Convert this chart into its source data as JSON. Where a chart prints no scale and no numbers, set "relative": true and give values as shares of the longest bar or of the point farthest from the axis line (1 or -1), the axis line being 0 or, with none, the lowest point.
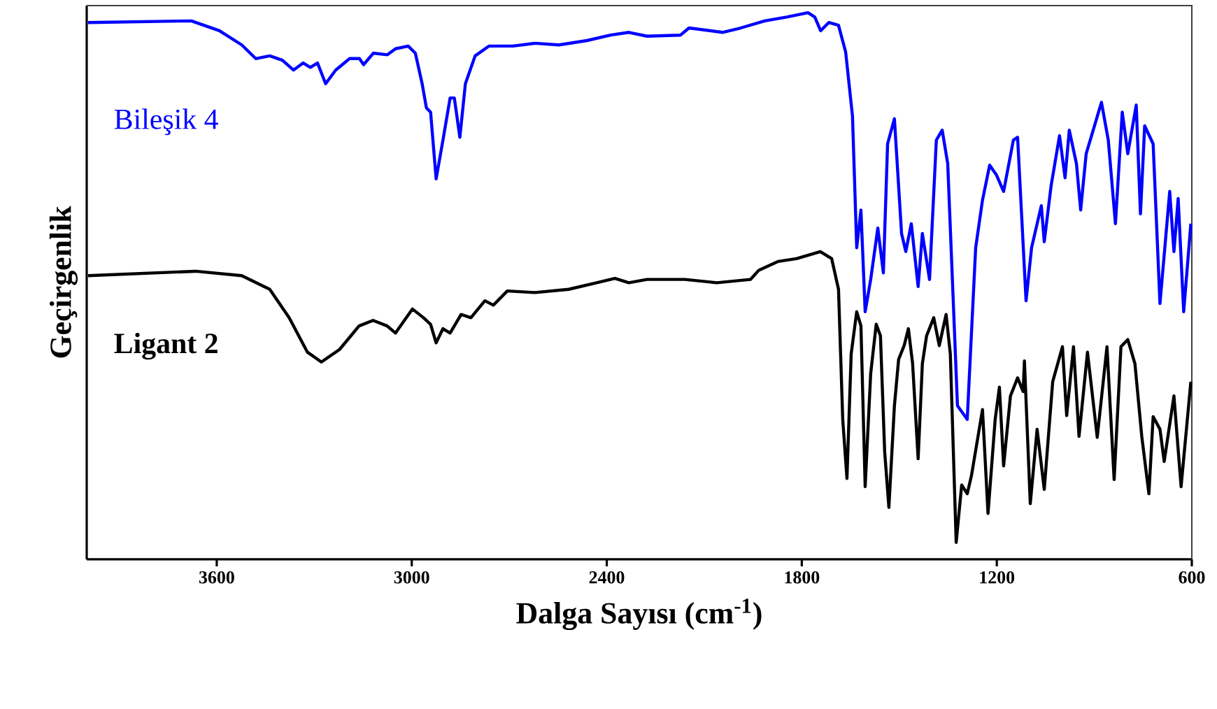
{
  "chart_data": {
    "type": "line",
    "xlabel": "Dalga Sayısı (cm$^{-1}$)",
    "ylabel": "Geçirgenlik",
    "relative": true,
    "xlim": [
      4000,
      600
    ],
    "xticks": [
      3600,
      3000,
      2400,
      1800,
      1200,
      600
    ],
    "series": [
      {
        "name": "Bileşik 4",
        "color": "#0000ff",
        "x": [
          3996,
          3678,
          3592,
          3523,
          3480,
          3437,
          3398,
          3364,
          3334,
          3312,
          3290,
          3265,
          3234,
          3191,
          3161,
          3148,
          3118,
          3075,
          3050,
          3011,
          2989,
          2968,
          2955,
          2942,
          2925,
          2904,
          2882,
          2869,
          2852,
          2835,
          2805,
          2762,
          2689,
          2620,
          2547,
          2461,
          2388,
          2332,
          2276,
          2173,
          2147,
          2044,
          1988,
          1914,
          1846,
          1781,
          1760,
          1742,
          1717,
          1687,
          1665,
          1644,
          1631,
          1618,
          1605,
          1588,
          1566,
          1549,
          1536,
          1515,
          1493,
          1480,
          1463,
          1442,
          1429,
          1407,
          1386,
          1368,
          1351,
          1321,
          1291,
          1265,
          1244,
          1222,
          1201,
          1179,
          1149,
          1136,
          1110,
          1093,
          1063,
          1054,
          1033,
          1007,
          990,
          977,
          955,
          942,
          925,
          878,
          857,
          835,
          814,
          797,
          771,
          758,
          745,
          719,
          698,
          668,
          655,
          642,
          625,
          603
        ],
        "values": [
          0.982,
          0.985,
          0.967,
          0.941,
          0.916,
          0.921,
          0.913,
          0.895,
          0.908,
          0.9,
          0.908,
          0.87,
          0.895,
          0.916,
          0.916,
          0.905,
          0.926,
          0.923,
          0.934,
          0.939,
          0.926,
          0.87,
          0.826,
          0.818,
          0.696,
          0.767,
          0.844,
          0.844,
          0.772,
          0.87,
          0.921,
          0.939,
          0.939,
          0.944,
          0.941,
          0.949,
          0.959,
          0.964,
          0.957,
          0.959,
          0.972,
          0.964,
          0.972,
          0.985,
          0.992,
          1.0,
          0.992,
          0.967,
          0.982,
          0.977,
          0.928,
          0.811,
          0.57,
          0.639,
          0.453,
          0.512,
          0.606,
          0.524,
          0.76,
          0.806,
          0.596,
          0.563,
          0.614,
          0.499,
          0.596,
          0.512,
          0.767,
          0.785,
          0.724,
          0.281,
          0.256,
          0.57,
          0.657,
          0.721,
          0.703,
          0.673,
          0.767,
          0.772,
          0.473,
          0.57,
          0.647,
          0.581,
          0.683,
          0.775,
          0.698,
          0.785,
          0.724,
          0.639,
          0.742,
          0.836,
          0.767,
          0.614,
          0.818,
          0.742,
          0.831,
          0.632,
          0.793,
          0.76,
          0.468,
          0.673,
          0.563,
          0.66,
          0.453,
          0.614
        ]
      },
      {
        "name": "Ligant 2",
        "color": "#000000",
        "x": [
          3996,
          3665,
          3523,
          3437,
          3377,
          3321,
          3278,
          3222,
          3162,
          3119,
          3076,
          3050,
          2998,
          2964,
          2942,
          2925,
          2904,
          2882,
          2848,
          2818,
          2775,
          2749,
          2706,
          2620,
          2517,
          2431,
          2375,
          2332,
          2276,
          2160,
          2061,
          1958,
          1932,
          1872,
          1816,
          1743,
          1708,
          1687,
          1674,
          1661,
          1648,
          1631,
          1618,
          1605,
          1588,
          1571,
          1558,
          1545,
          1532,
          1515,
          1502,
          1485,
          1472,
          1459,
          1442,
          1429,
          1416,
          1394,
          1377,
          1356,
          1343,
          1325,
          1308,
          1291,
          1278,
          1244,
          1227,
          1205,
          1192,
          1179,
          1158,
          1136,
          1119,
          1115,
          1097,
          1076,
          1054,
          1028,
          998,
          985,
          964,
          947,
          921,
          891,
          861,
          839,
          818,
          797,
          775,
          754,
          732,
          719,
          698,
          685,
          655,
          633,
          603
        ],
        "values": [
          0.519,
          0.527,
          0.519,
          0.494,
          0.442,
          0.379,
          0.361,
          0.384,
          0.427,
          0.437,
          0.427,
          0.414,
          0.458,
          0.442,
          0.43,
          0.396,
          0.422,
          0.414,
          0.448,
          0.442,
          0.473,
          0.465,
          0.491,
          0.488,
          0.494,
          0.506,
          0.514,
          0.506,
          0.512,
          0.512,
          0.506,
          0.512,
          0.529,
          0.545,
          0.55,
          0.563,
          0.55,
          0.494,
          0.256,
          0.148,
          0.376,
          0.453,
          0.427,
          0.133,
          0.34,
          0.43,
          0.409,
          0.197,
          0.095,
          0.281,
          0.366,
          0.391,
          0.422,
          0.358,
          0.184,
          0.358,
          0.409,
          0.442,
          0.391,
          0.448,
          0.376,
          0.031,
          0.136,
          0.12,
          0.153,
          0.274,
          0.084,
          0.256,
          0.315,
          0.171,
          0.299,
          0.332,
          0.307,
          0.363,
          0.102,
          0.238,
          0.128,
          0.325,
          0.389,
          0.263,
          0.389,
          0.225,
          0.379,
          0.223,
          0.389,
          0.146,
          0.389,
          0.402,
          0.358,
          0.225,
          0.12,
          0.261,
          0.238,
          0.179,
          0.299,
          0.133,
          0.325
        ]
      }
    ]
  }
}
